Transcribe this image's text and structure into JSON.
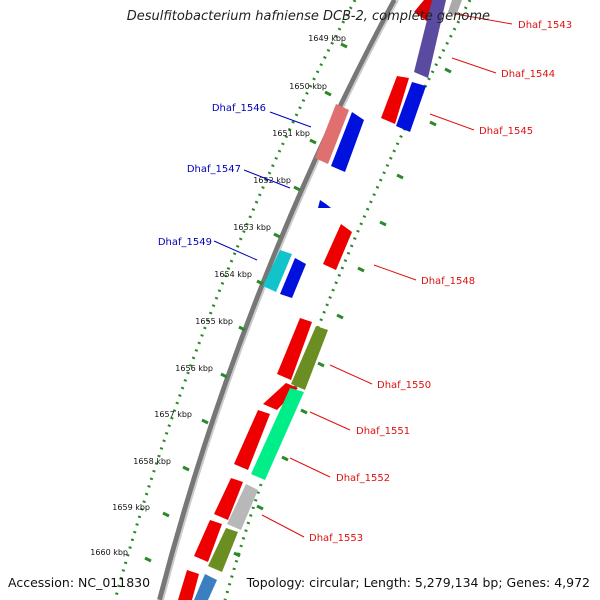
{
  "title": "Desulfitobacterium hafniense DCB-2, complete genome",
  "accession": "Accession: NC_011830",
  "summary": "Topology: circular; Length: 5,279,134 bp; Genes: 4,972",
  "ticks": [
    {
      "label": "1649 kbp"
    },
    {
      "label": "1650 kbp"
    },
    {
      "label": "1651 kbp"
    },
    {
      "label": "1652 kbp"
    },
    {
      "label": "1653 kbp"
    },
    {
      "label": "1654 kbp"
    },
    {
      "label": "1655 kbp"
    },
    {
      "label": "1656 kbp"
    },
    {
      "label": "1657 kbp"
    },
    {
      "label": "1658 kbp"
    },
    {
      "label": "1659 kbp"
    },
    {
      "label": "1660 kbp"
    }
  ],
  "genes_forward": [
    {
      "label": "Dhaf_1543",
      "color": "#dd1111"
    },
    {
      "label": "Dhaf_1544",
      "color": "#dd1111"
    },
    {
      "label": "Dhaf_1545",
      "color": "#dd1111"
    },
    {
      "label": "Dhaf_1548",
      "color": "#dd1111"
    },
    {
      "label": "Dhaf_1550",
      "color": "#dd1111"
    },
    {
      "label": "Dhaf_1551",
      "color": "#dd1111"
    },
    {
      "label": "Dhaf_1552",
      "color": "#dd1111"
    },
    {
      "label": "Dhaf_1553",
      "color": "#dd1111"
    }
  ],
  "genes_reverse": [
    {
      "label": "Dhaf_1546",
      "color": "#0000bb"
    },
    {
      "label": "Dhaf_1547",
      "color": "#0000bb"
    },
    {
      "label": "Dhaf_1549",
      "color": "#0000bb"
    }
  ],
  "colors": {
    "forward_cds": "#ee0000",
    "reverse_cds": "#0011dd",
    "backbone": "#888888",
    "ticks": "#2a8a2a",
    "forward_label": "#dd1111",
    "reverse_label": "#0000bb"
  }
}
